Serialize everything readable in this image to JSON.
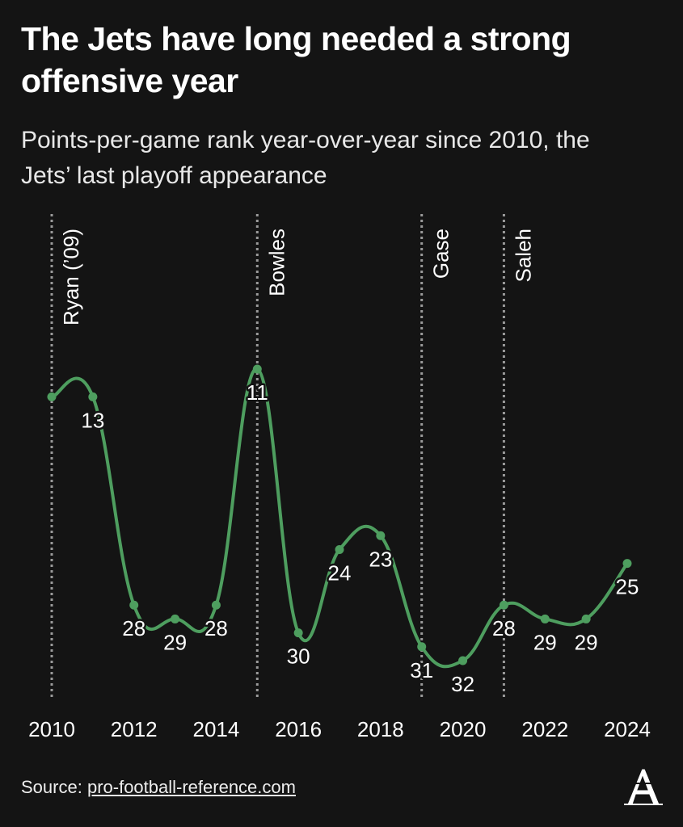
{
  "chart_data": {
    "type": "line",
    "title": "The Jets have long needed a strong offensive year",
    "subtitle": "Points-per-game rank year-over-year since 2010, the Jets’ last playoff appearance",
    "x": [
      2010,
      2011,
      2012,
      2013,
      2014,
      2015,
      2016,
      2017,
      2018,
      2019,
      2020,
      2021,
      2022,
      2023,
      2024
    ],
    "values": [
      13,
      13,
      28,
      29,
      28,
      11,
      30,
      24,
      23,
      31,
      32,
      28,
      29,
      29,
      25
    ],
    "value_labels": [
      null,
      "13",
      "28",
      "29",
      "28",
      "11",
      "30",
      "24",
      "23",
      "31",
      "32",
      "28",
      "29",
      "29",
      "25"
    ],
    "color": "#4e9e5f",
    "inverted": true,
    "xlim": [
      2010,
      2024
    ],
    "xticks": [
      2010,
      2012,
      2014,
      2016,
      2018,
      2020,
      2022,
      2024
    ],
    "annotations": [
      {
        "x": 2010,
        "label": "Ryan (’09)"
      },
      {
        "x": 2015,
        "label": "Bowles"
      },
      {
        "x": 2019,
        "label": "Gase"
      },
      {
        "x": 2021,
        "label": "Saleh"
      }
    ],
    "source_prefix": "Source:",
    "source": "pro-football-reference.com"
  }
}
